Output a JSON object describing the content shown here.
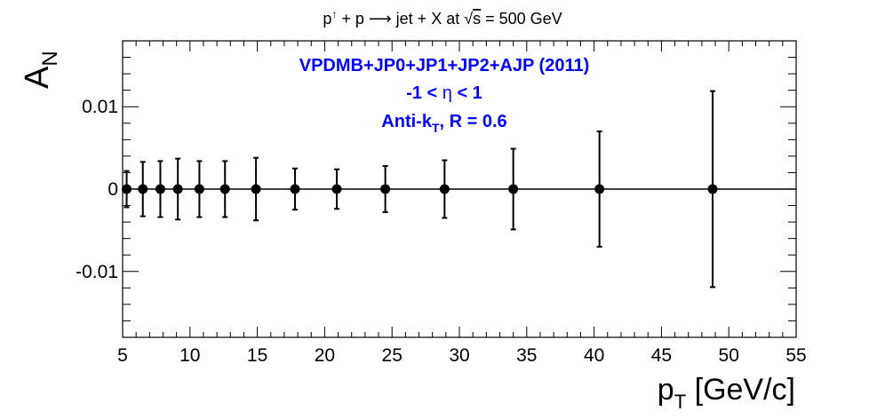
{
  "chart_data": {
    "type": "scatter",
    "title": {
      "p1": "p",
      "up": "↑",
      "p2": " + p ",
      "arrow": "⟶",
      "p3": " jet + X at ",
      "sqrt": "√",
      "s": "s",
      "p4": " = 500 GeV"
    },
    "xlabel": {
      "main": "p",
      "sub": "T",
      "rest": " [GeV/c]"
    },
    "ylabel": {
      "main": "A",
      "sub": "N"
    },
    "xlim": [
      5,
      55
    ],
    "ylim": [
      -0.018,
      0.018
    ],
    "xticks": [
      5,
      10,
      15,
      20,
      25,
      30,
      35,
      40,
      45,
      50,
      55
    ],
    "xtick_labels": [
      "5",
      "10",
      "15",
      "20",
      "25",
      "30",
      "35",
      "40",
      "45",
      "50",
      "55"
    ],
    "yticks": [
      -0.01,
      0,
      0.01
    ],
    "ytick_labels": [
      "-0.01",
      "0",
      "0.01"
    ],
    "grid": false,
    "annotations": {
      "line1": "VPDMB+JP0+JP1+JP2+AJP (2011)",
      "line2": {
        "a": "-1 < ",
        "eta": "η",
        "b": " < 1"
      },
      "line3": {
        "a": "Anti-k",
        "sub": "T",
        "b": ", R = 0.6"
      },
      "color": "#0000ff"
    },
    "reference_line": 0,
    "series": [
      {
        "x": [
          5.3,
          6.5,
          7.8,
          9.1,
          10.7,
          12.6,
          14.9,
          17.8,
          20.9,
          24.5,
          28.9,
          34.0,
          40.4,
          48.8
        ],
        "y": [
          0,
          0,
          0,
          0,
          0,
          0,
          0,
          0,
          0,
          0,
          0,
          0,
          0,
          0
        ],
        "err": [
          0.0022,
          0.0033,
          0.0034,
          0.0037,
          0.0034,
          0.0034,
          0.0038,
          0.0025,
          0.0024,
          0.0028,
          0.0035,
          0.0049,
          0.007,
          0.0119
        ],
        "color": "#000000"
      }
    ]
  }
}
